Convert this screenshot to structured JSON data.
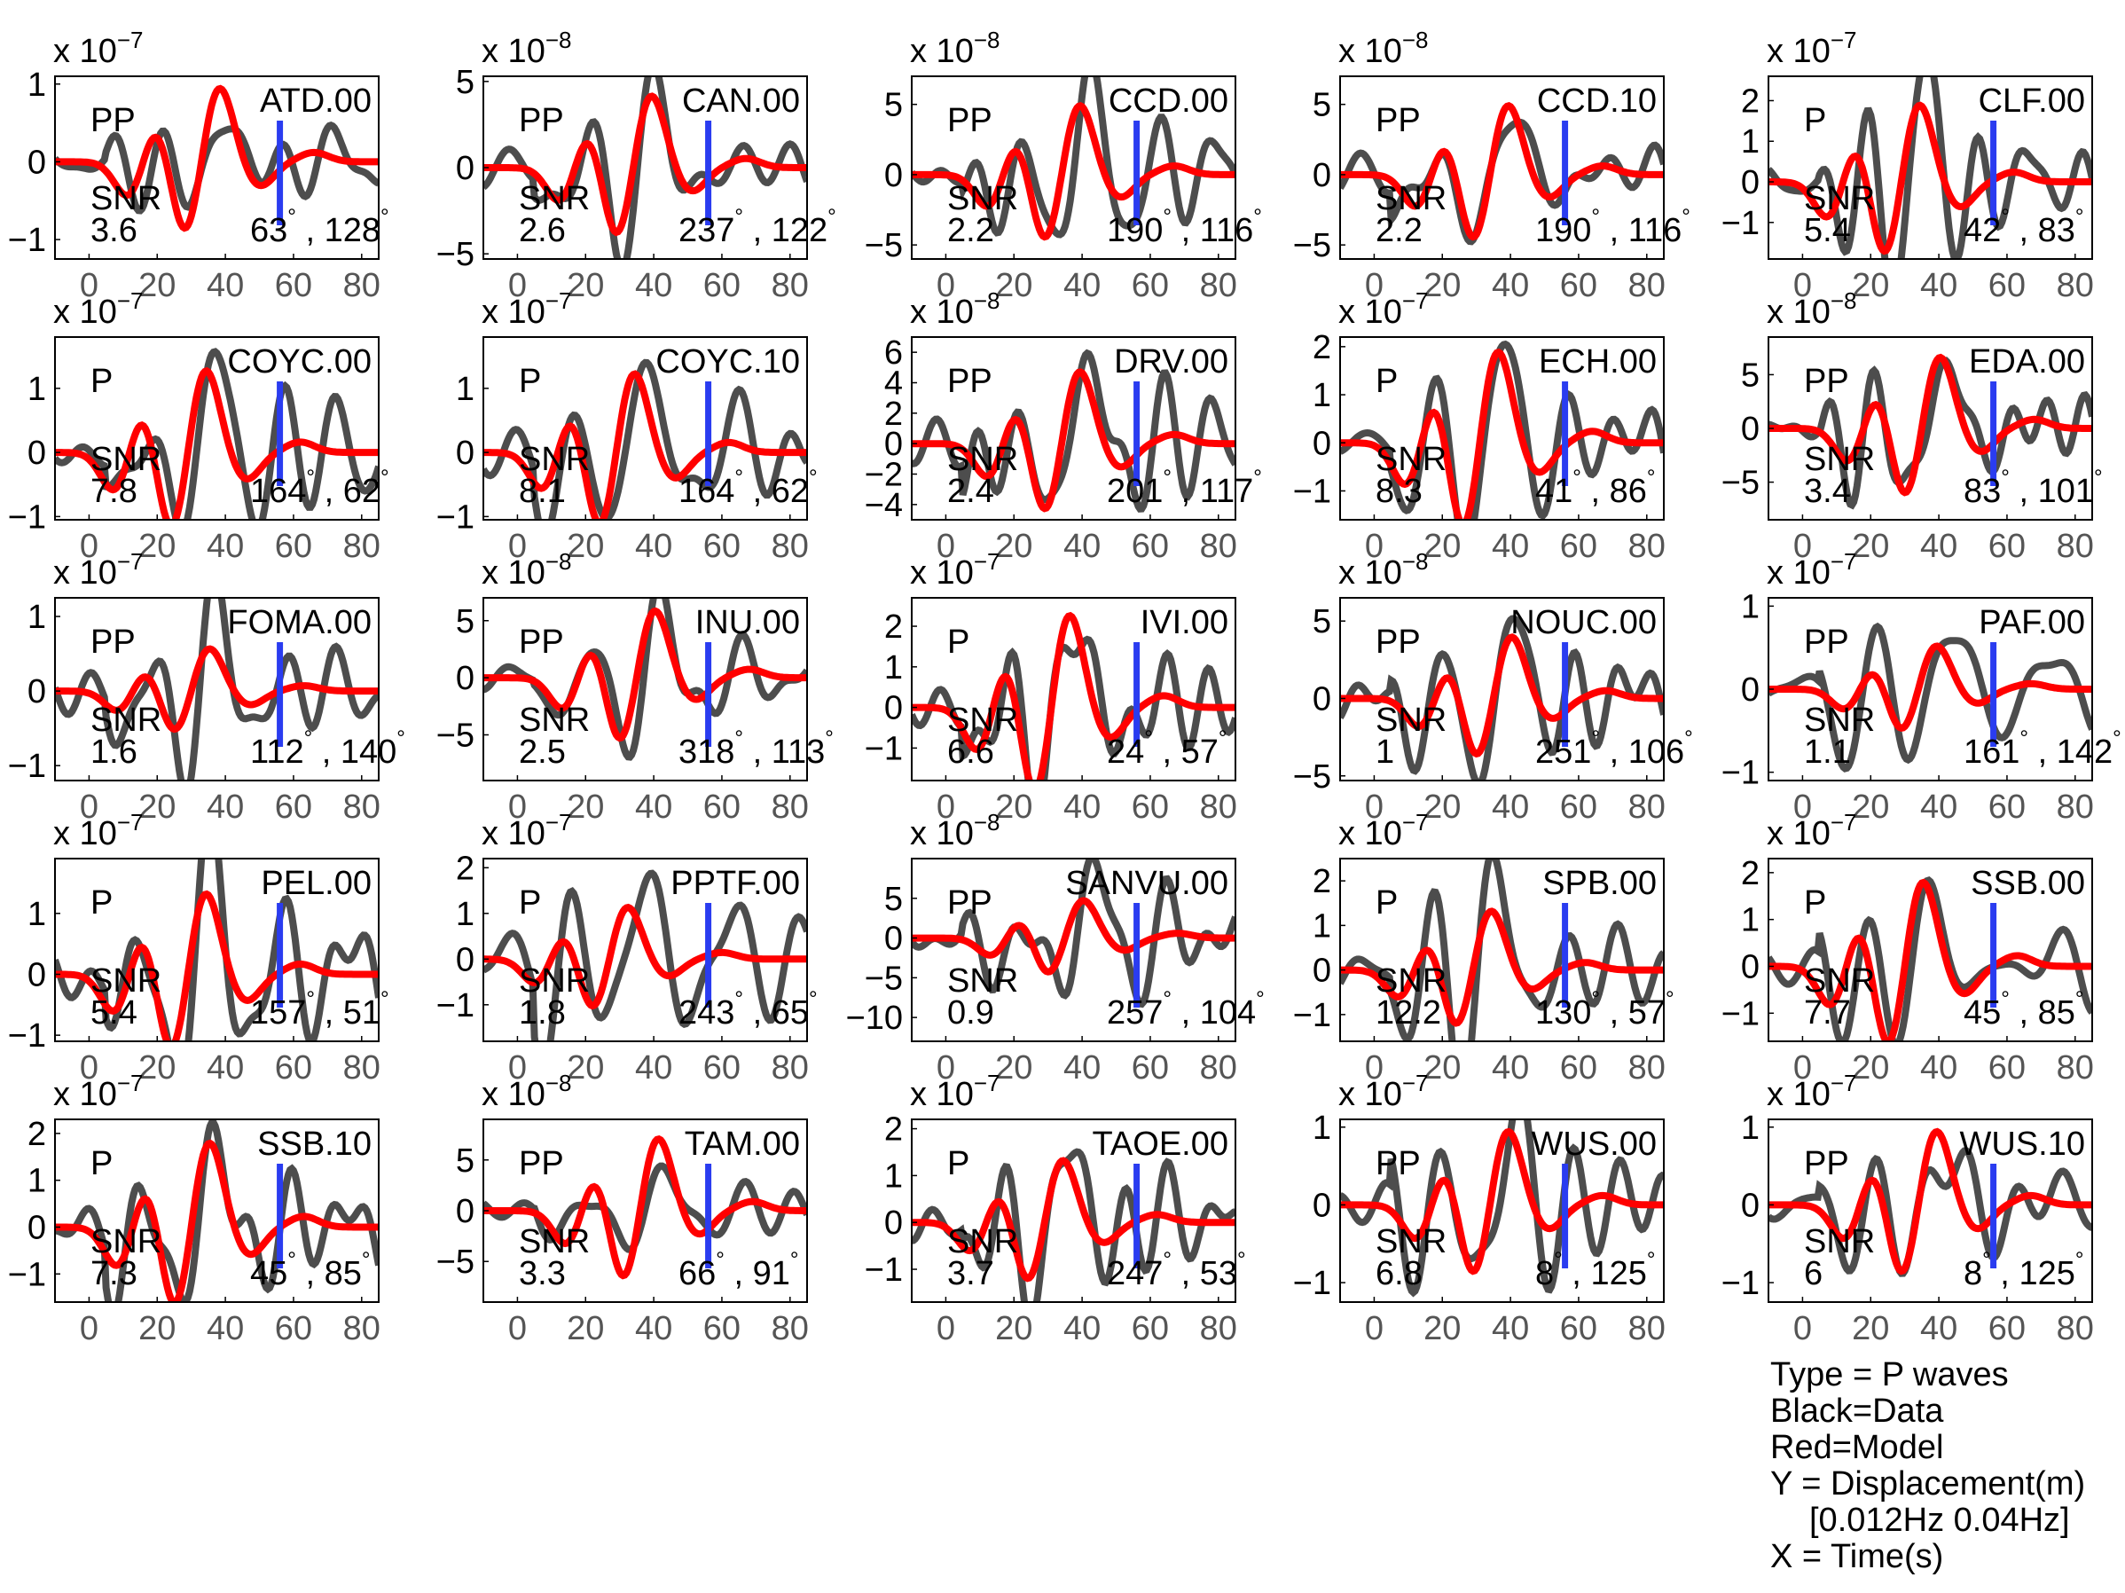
{
  "colors": {
    "data": "#4d4d4d",
    "model": "#ff0000",
    "marker": "#2a3cf0",
    "axis": "#000000",
    "tick_label": "#555555"
  },
  "x_ticks": [
    0,
    20,
    40,
    60,
    80
  ],
  "xlim": [
    -10,
    85
  ],
  "marker_time": 56,
  "legend": {
    "type_line": "Type = P waves",
    "data_line": "Black=Data",
    "model_line": "Red=Model",
    "y_line": "Y = Displacement(m)",
    "band_line": "[0.012Hz 0.04Hz]",
    "x_line": "X = Time(s)"
  },
  "chart_data": [
    {
      "type": "line",
      "station": "ATD.00",
      "phase": "PP",
      "snr_label": "SNR",
      "snr": "3.6",
      "azimuth": "63",
      "distance": "128",
      "exponent": "-7",
      "yticks": [
        -1,
        0,
        1
      ],
      "ylim": [
        -1.25,
        1.1
      ],
      "data_amp": 0.65,
      "model_amp": 1.0,
      "shift": -4,
      "seed": 1
    },
    {
      "type": "line",
      "station": "CAN.00",
      "phase": "PP",
      "snr_label": "SNR",
      "snr": "2.6",
      "azimuth": "237",
      "distance": "122",
      "exponent": "-8",
      "yticks": [
        -5,
        0,
        5
      ],
      "ylim": [
        -5.3,
        5.3
      ],
      "data_amp": 4.5,
      "model_amp": 4.4,
      "shift": -3,
      "seed": 2
    },
    {
      "type": "line",
      "station": "CCD.00",
      "phase": "PP",
      "snr_label": "SNR",
      "snr": "2.2",
      "azimuth": "190",
      "distance": "116",
      "exponent": "-8",
      "yticks": [
        -5,
        0,
        5
      ],
      "ylim": [
        -6,
        7
      ],
      "data_amp": 6.0,
      "model_amp": 5.2,
      "shift": -3,
      "seed": 3
    },
    {
      "type": "line",
      "station": "CCD.10",
      "phase": "PP",
      "snr_label": "SNR",
      "snr": "2.2",
      "azimuth": "190",
      "distance": "116",
      "exponent": "-8",
      "yticks": [
        -5,
        0,
        5
      ],
      "ylim": [
        -6,
        7
      ],
      "data_amp": 6.0,
      "model_amp": 5.2,
      "shift": -3,
      "seed": 4
    },
    {
      "type": "line",
      "station": "CLF.00",
      "phase": "P",
      "snr_label": "SNR",
      "snr": "5.4",
      "azimuth": "42",
      "distance": "83",
      "exponent": "-7",
      "yticks": [
        -1,
        0,
        1,
        2
      ],
      "ylim": [
        -1.9,
        2.6
      ],
      "data_amp": 2.3,
      "model_amp": 2.0,
      "shift": -8,
      "seed": 5
    },
    {
      "type": "line",
      "station": "COYC.00",
      "phase": "P",
      "snr_label": "SNR",
      "snr": "7.8",
      "azimuth": "164",
      "distance": "62",
      "exponent": "-7",
      "yticks": [
        -1,
        0,
        1
      ],
      "ylim": [
        -1.05,
        1.8
      ],
      "data_amp": 1.55,
      "model_amp": 1.35,
      "shift": -8,
      "seed": 6
    },
    {
      "type": "line",
      "station": "COYC.10",
      "phase": "P",
      "snr_label": "SNR",
      "snr": "8.1",
      "azimuth": "164",
      "distance": "62",
      "exponent": "-7",
      "yticks": [
        -1,
        0,
        1
      ],
      "ylim": [
        -1.05,
        1.8
      ],
      "data_amp": 1.65,
      "model_amp": 1.3,
      "shift": -8,
      "seed": 7
    },
    {
      "type": "line",
      "station": "DRV.00",
      "phase": "PP",
      "snr_label": "SNR",
      "snr": "2.4",
      "azimuth": "201",
      "distance": "117",
      "exponent": "-8",
      "yticks": [
        -4,
        -2,
        0,
        2,
        4,
        6
      ],
      "ylim": [
        -5,
        7
      ],
      "data_amp": 6.2,
      "model_amp": 5.0,
      "shift": -3,
      "seed": 8
    },
    {
      "type": "line",
      "station": "ECH.00",
      "phase": "P",
      "snr_label": "SNR",
      "snr": "8.3",
      "azimuth": "41",
      "distance": "86",
      "exponent": "-7",
      "yticks": [
        -1,
        0,
        1,
        2
      ],
      "ylim": [
        -1.6,
        2.2
      ],
      "data_amp": 2.0,
      "model_amp": 2.0,
      "shift": -6,
      "seed": 9
    },
    {
      "type": "line",
      "station": "EDA.00",
      "phase": "PP",
      "snr_label": "SNR",
      "snr": "3.4",
      "azimuth": "83",
      "distance": "101",
      "exponent": "-8",
      "yticks": [
        -5,
        0,
        5
      ],
      "ylim": [
        -8.5,
        8.5
      ],
      "data_amp": 7.0,
      "model_amp": 7.0,
      "shift": -2,
      "seed": 10
    },
    {
      "type": "line",
      "station": "FOMA.00",
      "phase": "PP",
      "snr_label": "SNR",
      "snr": "1.6",
      "azimuth": "112",
      "distance": "140",
      "exponent": "-7",
      "yticks": [
        -1,
        0,
        1
      ],
      "ylim": [
        -1.2,
        1.25
      ],
      "data_amp": 1.1,
      "model_amp": 0.6,
      "shift": -7,
      "seed": 11
    },
    {
      "type": "line",
      "station": "INU.00",
      "phase": "PP",
      "snr_label": "SNR",
      "snr": "2.5",
      "azimuth": "318",
      "distance": "113",
      "exponent": "-8",
      "yticks": [
        -5,
        0,
        5
      ],
      "ylim": [
        -9,
        7
      ],
      "data_amp": 5.5,
      "model_amp": 6.2,
      "shift": -2,
      "seed": 12
    },
    {
      "type": "line",
      "station": "IVI.00",
      "phase": "P",
      "snr_label": "SNR",
      "snr": "6.6",
      "azimuth": "24",
      "distance": "57",
      "exponent": "-7",
      "yticks": [
        -1,
        0,
        1,
        2
      ],
      "ylim": [
        -1.8,
        2.7
      ],
      "data_amp": 2.5,
      "model_amp": 2.4,
      "shift": -6,
      "seed": 13
    },
    {
      "type": "line",
      "station": "NOUC.00",
      "phase": "PP",
      "snr_label": "SNR",
      "snr": "1",
      "azimuth": "251",
      "distance": "106",
      "exponent": "-8",
      "yticks": [
        -5,
        0,
        5
      ],
      "ylim": [
        -5.3,
        6.5
      ],
      "data_amp": 5.4,
      "model_amp": 4.2,
      "shift": -2,
      "seed": 14
    },
    {
      "type": "line",
      "station": "PAF.00",
      "phase": "PP",
      "snr_label": "SNR",
      "snr": "1.1",
      "azimuth": "161",
      "distance": "142",
      "exponent": "-7",
      "yticks": [
        -1,
        0,
        1
      ],
      "ylim": [
        -1.1,
        1.1
      ],
      "data_amp": 0.9,
      "model_amp": 0.55,
      "shift": -3,
      "seed": 15
    },
    {
      "type": "line",
      "station": "PEL.00",
      "phase": "P",
      "snr_label": "SNR",
      "snr": "5.4",
      "azimuth": "157",
      "distance": "51",
      "exponent": "-7",
      "yticks": [
        -1,
        0,
        1
      ],
      "ylim": [
        -1.1,
        1.9
      ],
      "data_amp": 1.8,
      "model_amp": 1.4,
      "shift": -8,
      "seed": 16
    },
    {
      "type": "line",
      "station": "PPTF.00",
      "phase": "P",
      "snr_label": "SNR",
      "snr": "1.8",
      "azimuth": "243",
      "distance": "65",
      "exponent": "-7",
      "yticks": [
        -1,
        0,
        1,
        2
      ],
      "ylim": [
        -1.8,
        2.2
      ],
      "data_amp": 1.9,
      "model_amp": 1.2,
      "shift": -10,
      "seed": 17
    },
    {
      "type": "line",
      "station": "SANVU.00",
      "phase": "PP",
      "snr_label": "SNR",
      "snr": "0.9",
      "azimuth": "257",
      "distance": "104",
      "exponent": "-8",
      "yticks": [
        -10,
        -5,
        0,
        5
      ],
      "ylim": [
        -13,
        10
      ],
      "data_amp": 9.0,
      "model_amp": 5.0,
      "shift": -2,
      "seed": 18
    },
    {
      "type": "line",
      "station": "SPB.00",
      "phase": "P",
      "snr_label": "SNR",
      "snr": "12.2",
      "azimuth": "130",
      "distance": "57",
      "exponent": "-7",
      "yticks": [
        -1,
        0,
        1,
        2
      ],
      "ylim": [
        -1.6,
        2.5
      ],
      "data_amp": 2.05,
      "model_amp": 1.4,
      "shift": -8,
      "seed": 19
    },
    {
      "type": "line",
      "station": "SSB.00",
      "phase": "P",
      "snr_label": "SNR",
      "snr": "7.7",
      "azimuth": "45",
      "distance": "85",
      "exponent": "-7",
      "yticks": [
        -1,
        0,
        1,
        2
      ],
      "ylim": [
        -1.6,
        2.3
      ],
      "data_amp": 1.9,
      "model_amp": 1.9,
      "shift": -7,
      "seed": 20
    },
    {
      "type": "line",
      "station": "SSB.10",
      "phase": "P",
      "snr_label": "SNR",
      "snr": "7.3",
      "azimuth": "45",
      "distance": "85",
      "exponent": "-7",
      "yticks": [
        -1,
        0,
        1,
        2
      ],
      "ylim": [
        -1.6,
        2.3
      ],
      "data_amp": 1.9,
      "model_amp": 1.9,
      "shift": -7,
      "seed": 21
    },
    {
      "type": "line",
      "station": "TAM.00",
      "phase": "PP",
      "snr_label": "SNR",
      "snr": "3.3",
      "azimuth": "66",
      "distance": "91",
      "exponent": "-8",
      "yticks": [
        -5,
        0,
        5
      ],
      "ylim": [
        -9,
        9
      ],
      "data_amp": 4.0,
      "model_amp": 7.5,
      "shift": -1,
      "seed": 22
    },
    {
      "type": "line",
      "station": "TAOE.00",
      "phase": "P",
      "snr_label": "SNR",
      "snr": "3.7",
      "azimuth": "247",
      "distance": "53",
      "exponent": "-7",
      "yticks": [
        -1,
        0,
        1,
        2
      ],
      "ylim": [
        -1.7,
        2.2
      ],
      "data_amp": 1.9,
      "model_amp": 1.4,
      "shift": -8,
      "seed": 23
    },
    {
      "type": "line",
      "station": "WUS.00",
      "phase": "PP",
      "snr_label": "SNR",
      "snr": "6.8",
      "azimuth": "8",
      "distance": "125",
      "exponent": "-7",
      "yticks": [
        -1,
        0,
        1
      ],
      "ylim": [
        -1.25,
        1.1
      ],
      "data_amp": 1.05,
      "model_amp": 1.0,
      "shift": -3,
      "seed": 24
    },
    {
      "type": "line",
      "station": "WUS.10",
      "phase": "PP",
      "snr_label": "SNR",
      "snr": "6",
      "azimuth": "8",
      "distance": "125",
      "exponent": "-7",
      "yticks": [
        -1,
        0,
        1
      ],
      "ylim": [
        -1.25,
        1.1
      ],
      "data_amp": 1.05,
      "model_amp": 1.0,
      "shift": -3,
      "seed": 25
    }
  ]
}
